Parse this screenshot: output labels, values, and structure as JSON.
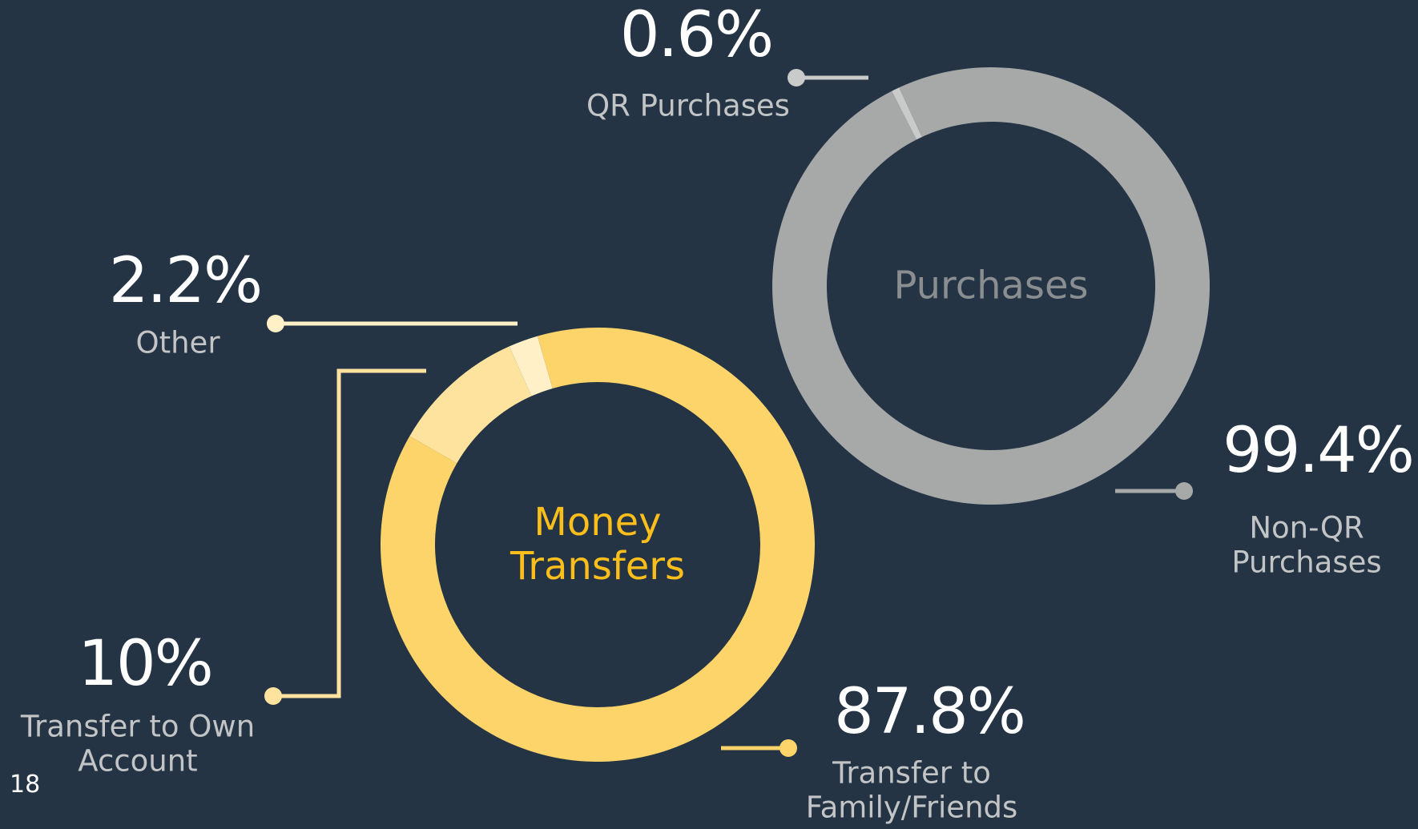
{
  "chart_data": [
    {
      "type": "pie",
      "title": "Purchases",
      "categories": [
        "QR Purchases",
        "Non-QR Purchases"
      ],
      "values": [
        0.6,
        99.4
      ],
      "value_labels": [
        "0.6%",
        "99.4%"
      ],
      "colors": [
        "#c9caca",
        "#a7a9a9"
      ],
      "title_color": "#8a8e90",
      "label_color": "#c2c4c5"
    },
    {
      "type": "pie",
      "title": "Money Transfers",
      "categories": [
        "Transfer to Own Account",
        "Other",
        "Transfer to Family/Friends"
      ],
      "values": [
        10,
        2.2,
        87.8
      ],
      "value_labels": [
        "10%",
        "2.2%",
        "87.8%"
      ],
      "colors": [
        "#fee39e",
        "#fff0c8",
        "#fdd46a"
      ],
      "title_color": "#fbbe1a",
      "label_color": "#c2c4c5"
    }
  ],
  "page_number": "18"
}
